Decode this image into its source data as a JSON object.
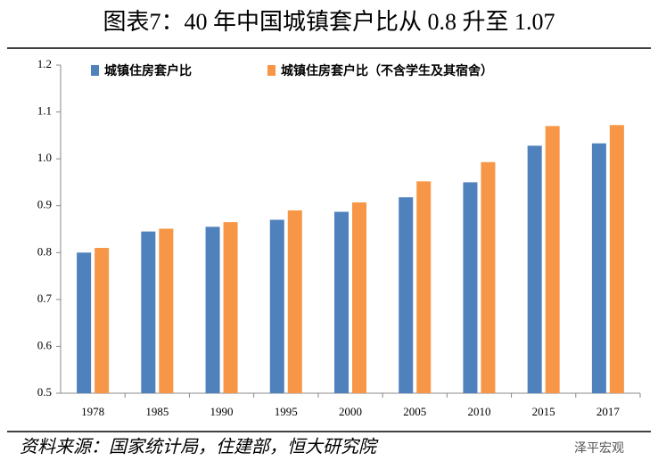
{
  "chart_data": {
    "type": "bar",
    "title": "图表7：40 年中国城镇套户比从 0.8 升至 1.07",
    "categories": [
      "1978",
      "1985",
      "1990",
      "1995",
      "2000",
      "2005",
      "2010",
      "2015",
      "2017"
    ],
    "series": [
      {
        "name": "城镇住房套户比",
        "color": "#4f81bd",
        "values": [
          0.8,
          0.845,
          0.855,
          0.87,
          0.887,
          0.918,
          0.95,
          1.028,
          1.033
        ]
      },
      {
        "name": "城镇住房套户比（不含学生及其宿舍）",
        "color": "#f79646",
        "values": [
          0.81,
          0.851,
          0.865,
          0.89,
          0.907,
          0.952,
          0.993,
          1.07,
          1.072
        ]
      }
    ],
    "ylim": [
      0.5,
      1.2
    ],
    "yticks": [
      0.5,
      0.6,
      0.7,
      0.8,
      0.9,
      {
        "value": 1,
        "label": "1.0"
      },
      1.1,
      1.2
    ],
    "grid": false,
    "legend": "top-left",
    "source": "资料来源：国家统计局，住建部，恒大研究院",
    "watermark": "泽平宏观"
  }
}
